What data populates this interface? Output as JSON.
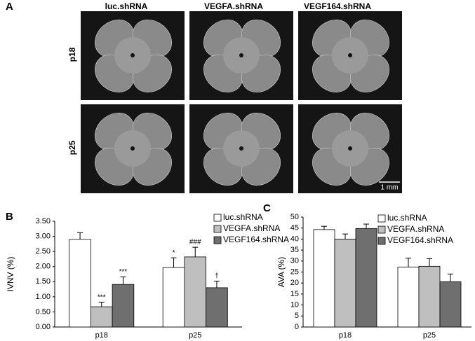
{
  "panel_a": {
    "label": "A",
    "columns": [
      "luc.shRNA",
      "VEGFA.shRNA",
      "VEGF164.shRNA"
    ],
    "rows": [
      "p18",
      "p25"
    ],
    "scale_bar": "1 mm"
  },
  "chart_data": [
    {
      "type": "bar",
      "panel_label": "B",
      "y_label": "IVNV (%)",
      "categories": [
        "p18",
        "p25"
      ],
      "series": [
        {
          "name": "luc.shRNA",
          "color": "#ffffff",
          "values": [
            2.9,
            1.97
          ],
          "errors": [
            0.22,
            0.32
          ],
          "annotations": [
            null,
            "*"
          ]
        },
        {
          "name": "VEGFA.shRNA",
          "color": "#bfbfbf",
          "values": [
            0.67,
            2.32
          ],
          "errors": [
            0.15,
            0.32
          ],
          "annotations": [
            "***",
            "###"
          ]
        },
        {
          "name": "VEGF164.shRNA",
          "color": "#6f6f6f",
          "values": [
            1.41,
            1.3
          ],
          "errors": [
            0.25,
            0.22
          ],
          "annotations": [
            "***",
            "†"
          ]
        }
      ],
      "ylim": [
        0,
        3.5
      ],
      "yticks": [
        {
          "value": 0,
          "label": "0.00"
        },
        {
          "value": 0.5,
          "label": "0.50"
        },
        {
          "value": 1,
          "label": "1.00"
        },
        {
          "value": 1.5,
          "label": "1.50"
        },
        {
          "value": 2,
          "label": "2.00"
        },
        {
          "value": 2.5,
          "label": "2.50"
        },
        {
          "value": 3,
          "label": "3.00"
        },
        {
          "value": 3.5,
          "label": "3.50"
        }
      ],
      "legend": "top-right"
    },
    {
      "type": "bar",
      "panel_label": "C",
      "y_label": "AVA (%)",
      "categories": [
        "p18",
        "p25"
      ],
      "series": [
        {
          "name": "luc.shRNA",
          "color": "#ffffff",
          "values": [
            44.3,
            27.3
          ],
          "errors": [
            1.5,
            4
          ]
        },
        {
          "name": "VEGFA.shRNA",
          "color": "#bfbfbf",
          "values": [
            40,
            27.6
          ],
          "errors": [
            2.3,
            3.5
          ]
        },
        {
          "name": "VEGF164.shRNA",
          "color": "#6f6f6f",
          "values": [
            44.8,
            20.6
          ],
          "errors": [
            2,
            3.5
          ]
        }
      ],
      "ylim": [
        0,
        50
      ],
      "yticks": [
        0,
        5,
        10,
        15,
        20,
        25,
        30,
        35,
        40,
        45,
        50
      ],
      "legend": "top-right"
    }
  ]
}
